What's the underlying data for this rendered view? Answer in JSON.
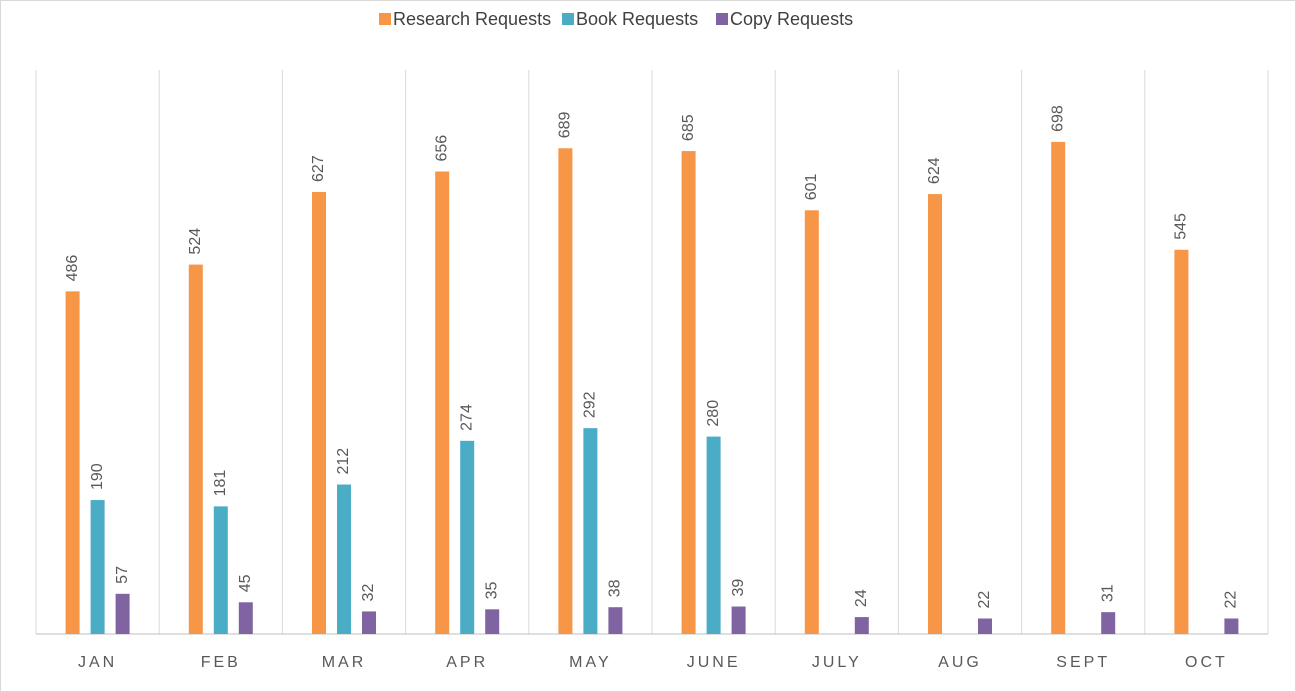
{
  "chart_data": {
    "type": "bar",
    "categories": [
      "JAN",
      "FEB",
      "MAR",
      "APR",
      "MAY",
      "JUNE",
      "JULY",
      "AUG",
      "SEPT",
      "OCT"
    ],
    "series": [
      {
        "name": "Research Requests",
        "color": "#f79646",
        "values": [
          486,
          524,
          627,
          656,
          689,
          685,
          601,
          624,
          698,
          545
        ]
      },
      {
        "name": "Book Requests",
        "color": "#4bacc6",
        "values": [
          190,
          181,
          212,
          274,
          292,
          280,
          null,
          null,
          null,
          null
        ]
      },
      {
        "name": "Copy Requests",
        "color": "#8064a2",
        "values": [
          57,
          45,
          32,
          35,
          38,
          39,
          24,
          22,
          31,
          22
        ]
      }
    ],
    "ylim": [
      0,
      800
    ],
    "legend": "top",
    "grid": true
  }
}
